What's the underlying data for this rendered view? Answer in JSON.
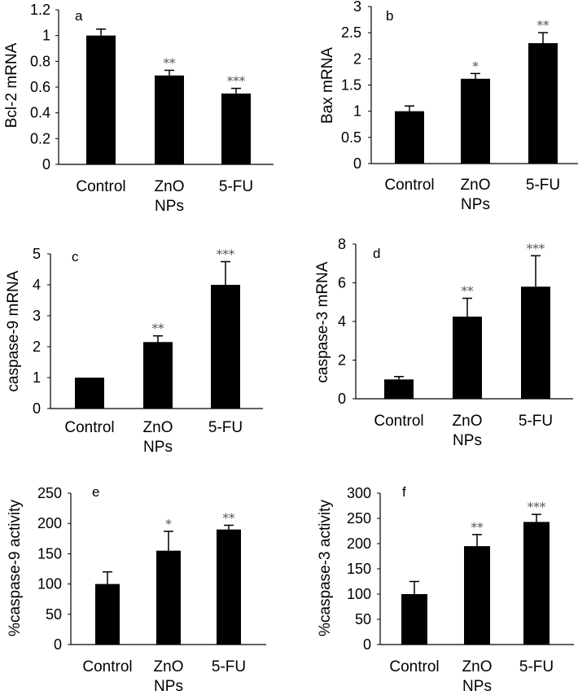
{
  "figure": {
    "background": "#ffffff",
    "bar_color": "#000000",
    "sig_color": "#555555"
  },
  "chart_data": [
    {
      "type": "bar",
      "panel": "a",
      "title": "",
      "xlabel": "",
      "ylabel": "Bcl-2  mRNA",
      "categories": [
        [
          "Control"
        ],
        [
          "ZnO",
          "NPs"
        ],
        [
          "5-FU"
        ]
      ],
      "values": [
        1.0,
        0.69,
        0.55
      ],
      "errors": [
        0.05,
        0.04,
        0.04
      ],
      "significance": [
        "",
        "**",
        "***"
      ],
      "ylim": [
        0,
        1.2
      ],
      "ticks": [
        0,
        0.2,
        0.4,
        0.6,
        0.8,
        1,
        1.2
      ],
      "tick_labels": [
        "0",
        "0.2",
        "0.4",
        "0.6",
        "0.8",
        "1",
        "1.2"
      ],
      "grid": false
    },
    {
      "type": "bar",
      "panel": "b",
      "title": "",
      "xlabel": "",
      "ylabel": "Bax mRNA",
      "categories": [
        [
          "Control"
        ],
        [
          "ZnO",
          "NPs"
        ],
        [
          "5-FU"
        ]
      ],
      "values": [
        1.0,
        1.62,
        2.3
      ],
      "errors": [
        0.1,
        0.1,
        0.2
      ],
      "significance": [
        "",
        "*",
        "**"
      ],
      "ylim": [
        0,
        3
      ],
      "ticks": [
        0,
        0.5,
        1,
        1.5,
        2,
        2.5,
        3
      ],
      "tick_labels": [
        "0",
        "0.5",
        "1",
        "1.5",
        "2",
        "2.5",
        "3"
      ],
      "grid": false
    },
    {
      "type": "bar",
      "panel": "c",
      "title": "",
      "xlabel": "",
      "ylabel": "caspase-9 mRNA",
      "categories": [
        [
          "Control"
        ],
        [
          "ZnO",
          "NPs"
        ],
        [
          "5-FU"
        ]
      ],
      "values": [
        1.0,
        2.15,
        4.0
      ],
      "errors": [
        0,
        0.2,
        0.75
      ],
      "significance": [
        "",
        "**",
        "***"
      ],
      "ylim": [
        0,
        5
      ],
      "ticks": [
        0,
        1,
        2,
        3,
        4,
        5
      ],
      "tick_labels": [
        "0",
        "1",
        "2",
        "3",
        "4",
        "5"
      ],
      "grid": false
    },
    {
      "type": "bar",
      "panel": "d",
      "title": "",
      "xlabel": "",
      "ylabel": "caspase-3 mRNA",
      "categories": [
        [
          "Control"
        ],
        [
          "ZnO",
          "NPs"
        ],
        [
          "5-FU"
        ]
      ],
      "values": [
        1.0,
        4.25,
        5.8
      ],
      "errors": [
        0.15,
        0.95,
        1.6
      ],
      "significance": [
        "",
        "**",
        "***"
      ],
      "ylim": [
        0,
        8
      ],
      "ticks": [
        0,
        2,
        4,
        6,
        8
      ],
      "tick_labels": [
        "0",
        "2",
        "4",
        "6",
        "8"
      ],
      "grid": false
    },
    {
      "type": "bar",
      "panel": "e",
      "title": "",
      "xlabel": "",
      "ylabel": "%caspase-9 activity",
      "categories": [
        [
          "Control"
        ],
        [
          "ZnO",
          "NPs"
        ],
        [
          "5-FU"
        ]
      ],
      "values": [
        100,
        155,
        190
      ],
      "errors": [
        20,
        32,
        7
      ],
      "significance": [
        "",
        "*",
        "**"
      ],
      "ylim": [
        0,
        250
      ],
      "ticks": [
        0,
        50,
        100,
        150,
        200,
        250
      ],
      "tick_labels": [
        "0",
        "50",
        "100",
        "150",
        "200",
        "250"
      ],
      "grid": false
    },
    {
      "type": "bar",
      "panel": "f",
      "title": "",
      "xlabel": "",
      "ylabel": "%caspase-3 activity",
      "categories": [
        [
          "Control"
        ],
        [
          "ZnO",
          "NPs"
        ],
        [
          "5-FU"
        ]
      ],
      "values": [
        100,
        195,
        243
      ],
      "errors": [
        25,
        23,
        15
      ],
      "significance": [
        "",
        "**",
        "***"
      ],
      "ylim": [
        0,
        300
      ],
      "ticks": [
        0,
        50,
        100,
        150,
        200,
        250,
        300
      ],
      "tick_labels": [
        "0",
        "50",
        "100",
        "150",
        "200",
        "250",
        "300"
      ],
      "grid": false
    }
  ]
}
